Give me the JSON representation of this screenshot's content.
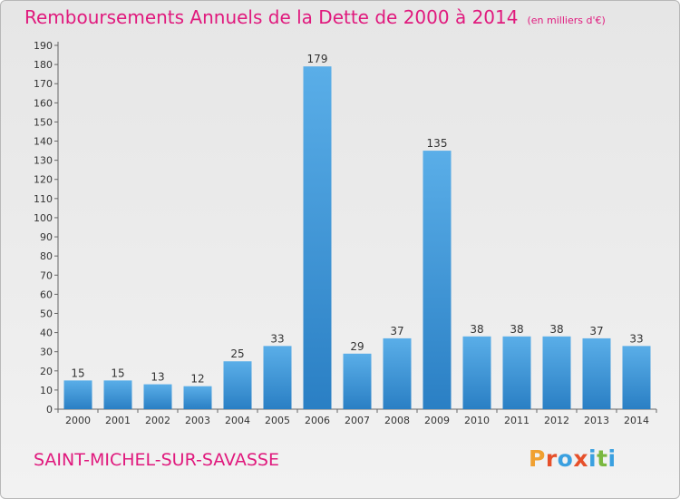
{
  "title": "Remboursements Annuels de la Dette de 2000 à 2014",
  "unit": "(en milliers d'€)",
  "town": "SAINT-MICHEL-SUR-SAVASSE",
  "logo": {
    "text": "Proxiti",
    "colors": [
      "#f0a030",
      "#e6502a",
      "#3aa0e0",
      "#e6502a",
      "#3aa0e0",
      "#7ab840",
      "#3aa0e0"
    ]
  },
  "colors": {
    "title": "#e0197d",
    "bar_top": "#5aaee8",
    "bar_bottom": "#2a7fc4",
    "axis": "#666666"
  },
  "chart_data": {
    "type": "bar",
    "categories": [
      "2000",
      "2001",
      "2002",
      "2003",
      "2004",
      "2005",
      "2006",
      "2007",
      "2008",
      "2009",
      "2010",
      "2011",
      "2012",
      "2013",
      "2014"
    ],
    "values": [
      15,
      15,
      13,
      12,
      25,
      33,
      179,
      29,
      37,
      135,
      38,
      38,
      38,
      37,
      33
    ],
    "ylim": [
      0,
      190
    ],
    "yticks": [
      0,
      10,
      20,
      30,
      40,
      50,
      60,
      70,
      80,
      90,
      100,
      110,
      120,
      130,
      140,
      150,
      160,
      170,
      180,
      190
    ],
    "grid": false,
    "data_labels": true
  }
}
